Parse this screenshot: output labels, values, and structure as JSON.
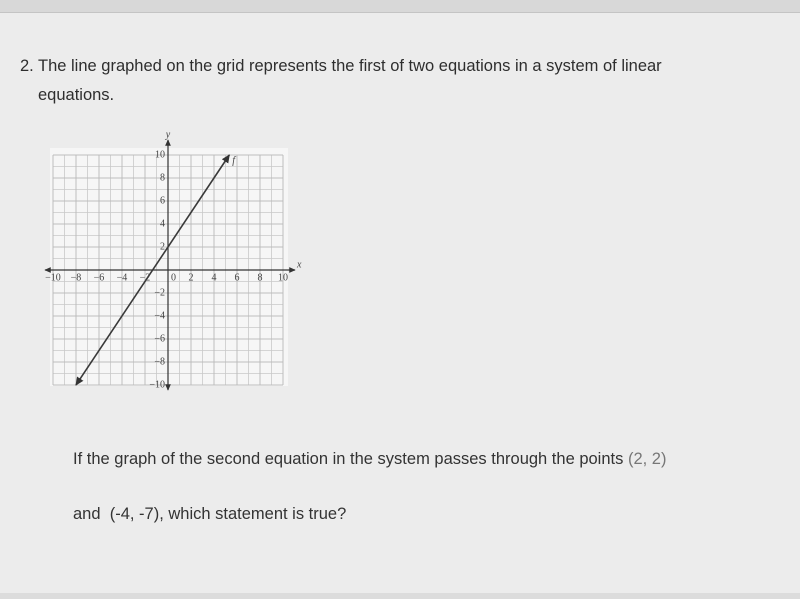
{
  "question": {
    "number": "2.",
    "lines": [
      "The line graphed on the grid represents the first of two equations in a system of linear",
      "equations."
    ]
  },
  "chart_data": {
    "type": "line",
    "x_label": "x",
    "y_label": "y",
    "origin_label": "0",
    "series": [
      {
        "name": "f",
        "color": "#3a3a3a",
        "x": [
          -8,
          5.33
        ],
        "values": [
          -10,
          10
        ]
      }
    ],
    "xlim": [
      -10,
      10
    ],
    "ylim": [
      -10,
      10
    ],
    "xticks": [
      {
        "value": -10,
        "label": "−10"
      },
      {
        "value": -8,
        "label": "−8"
      },
      {
        "value": -6,
        "label": "−6"
      },
      {
        "value": -4,
        "label": "−4"
      },
      {
        "value": -2,
        "label": "−2"
      },
      2,
      4,
      6,
      8,
      10
    ],
    "yticks": [
      {
        "value": -10,
        "label": "−10"
      },
      {
        "value": -8,
        "label": "−8"
      },
      {
        "value": -6,
        "label": "−6"
      },
      {
        "value": -4,
        "label": "−4"
      },
      {
        "value": -2,
        "label": "−2"
      },
      2,
      4,
      6,
      8,
      10
    ],
    "grid": true
  },
  "prompt": {
    "line1": "If the graph of the second equation in the system passes through the points",
    "point1": "(2, 2)",
    "line2_start": "and",
    "point2": "(-4, -7)",
    "line2_end": ", which statement is true?"
  }
}
